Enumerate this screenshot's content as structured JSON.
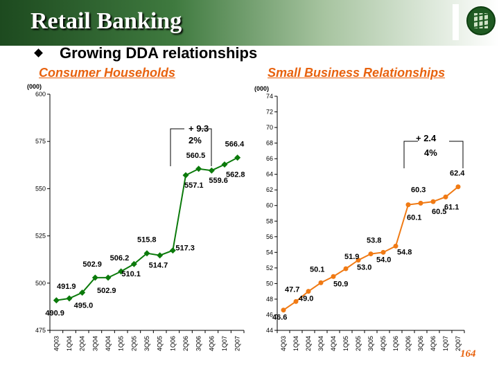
{
  "header": {
    "title": "Retail Banking",
    "logo_icon": "bank-logo-icon"
  },
  "subtitle": {
    "bullet_icon": "diamond-bullet-icon",
    "text": "Growing DDA relationships"
  },
  "footer": {
    "page_number": "164"
  },
  "colors": {
    "left_series": "#0b7a0b",
    "right_series": "#f07a14",
    "title": "#e8620e"
  },
  "chart_data": [
    {
      "type": "line",
      "title": "Consumer Households",
      "unit_label": "(000)",
      "categories": [
        "4Q03",
        "1Q04",
        "2Q04",
        "3Q04",
        "4Q04",
        "1Q05",
        "2Q05",
        "3Q05",
        "4Q05",
        "1Q06",
        "2Q06",
        "3Q06",
        "4Q06",
        "1Q07",
        "2Q07"
      ],
      "series": [
        {
          "values": [
            490.9,
            491.9,
            495.0,
            502.9,
            502.9,
            506.2,
            510.1,
            515.8,
            514.7,
            517.3,
            557.1,
            560.5,
            559.6,
            562.8,
            566.4
          ]
        }
      ],
      "data_labels": [
        "490.9",
        "491.9",
        "495.0",
        "502.9",
        "502.9",
        "506.2",
        "510.1",
        "515.8",
        "514.7",
        "517.3",
        "557.1",
        "560.5",
        "559.6",
        "562.8",
        "566.4"
      ],
      "ylim": [
        475,
        600
      ],
      "yticks": [
        475,
        500,
        525,
        550,
        575,
        600
      ],
      "annotation": {
        "lines": [
          "+ 9.3",
          "2%"
        ],
        "from_index": 10,
        "to_index": 14
      }
    },
    {
      "type": "line",
      "title": "Small Business Relationships",
      "unit_label": "(000)",
      "categories": [
        "4Q03",
        "1Q04",
        "2Q04",
        "3Q04",
        "4Q04",
        "1Q05",
        "2Q05",
        "3Q05",
        "4Q05",
        "1Q06",
        "2Q06",
        "3Q06",
        "4Q06",
        "1Q07",
        "2Q07"
      ],
      "series": [
        {
          "values": [
            46.6,
            47.7,
            49.0,
            50.1,
            50.9,
            51.9,
            53.0,
            53.8,
            54.0,
            54.8,
            60.1,
            60.3,
            60.5,
            61.1,
            62.4
          ]
        }
      ],
      "data_labels": [
        "46.6",
        "47.7",
        "49.0",
        "50.1",
        "50.9",
        "51.9",
        "53.0",
        "53.8",
        "54.0",
        "54.8",
        "60.1",
        "60.3",
        "60.5",
        "61.1",
        "62.4"
      ],
      "ylim": [
        44,
        74
      ],
      "yticks": [
        44,
        46,
        48,
        50,
        52,
        54,
        56,
        58,
        60,
        62,
        64,
        66,
        68,
        70,
        72,
        74
      ],
      "annotation": {
        "lines": [
          "+ 2.4",
          "4%"
        ],
        "from_index": 10,
        "to_index": 14
      }
    }
  ]
}
